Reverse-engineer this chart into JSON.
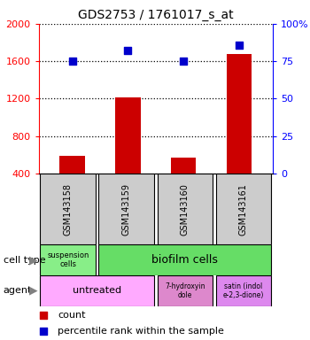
{
  "title": "GDS2753 / 1761017_s_at",
  "samples": [
    "GSM143158",
    "GSM143159",
    "GSM143160",
    "GSM143161"
  ],
  "counts": [
    590,
    1215,
    565,
    1680
  ],
  "percentiles": [
    75,
    82,
    75,
    86
  ],
  "ylim_left": [
    400,
    2000
  ],
  "ylim_right": [
    0,
    100
  ],
  "yticks_left": [
    400,
    800,
    1200,
    1600,
    2000
  ],
  "yticks_right": [
    0,
    25,
    50,
    75,
    100
  ],
  "ytick_labels_right": [
    "0",
    "25",
    "50",
    "75",
    "100%"
  ],
  "bar_color": "#cc0000",
  "dot_color": "#0000cc",
  "bar_width": 0.45,
  "sample_box_color": "#cccccc",
  "cell_type_colors": [
    "#88ee88",
    "#55dd55"
  ],
  "agent_colors": [
    "#ee88ee",
    "#cc66cc",
    "#dd88ee"
  ],
  "green_light": "#88ee88",
  "green_dark": "#55dd55",
  "pink_light": "#ffaaff",
  "pink_mid": "#cc88cc",
  "pink_dark": "#dd88ee"
}
